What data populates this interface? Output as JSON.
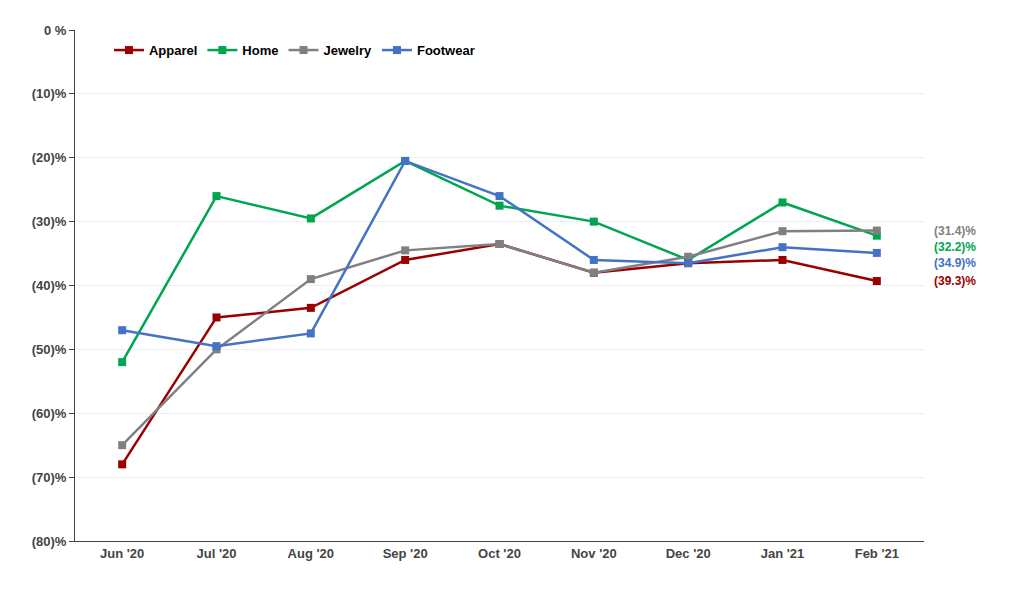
{
  "chart_data": {
    "type": "line",
    "categories": [
      "Jun '20",
      "Jul '20",
      "Aug '20",
      "Sep '20",
      "Oct '20",
      "Nov '20",
      "Dec '20",
      "Jan '21",
      "Feb '21"
    ],
    "series": [
      {
        "name": "Apparel",
        "color": "#9B0000",
        "marker": "square",
        "values": [
          -68.0,
          -45.0,
          -43.5,
          -36.0,
          -33.5,
          -38.0,
          -36.5,
          -36.0,
          -39.3
        ]
      },
      {
        "name": "Home",
        "color": "#00A550",
        "marker": "square",
        "values": [
          -52.0,
          -26.0,
          -29.5,
          -20.5,
          -27.5,
          -30.0,
          -36.0,
          -27.0,
          -32.2
        ]
      },
      {
        "name": "Jewelry",
        "color": "#808080",
        "marker": "square",
        "values": [
          -65.0,
          -50.0,
          -39.0,
          -34.5,
          -33.5,
          -38.0,
          -35.5,
          -31.5,
          -31.4
        ]
      },
      {
        "name": "Footwear",
        "color": "#4472C4",
        "marker": "square",
        "values": [
          -47.0,
          -49.5,
          -47.5,
          -20.5,
          -26.0,
          -36.0,
          -36.5,
          -34.0,
          -34.9
        ]
      }
    ],
    "ylim": [
      -80,
      0
    ],
    "yticks": [
      {
        "value": 0,
        "label": "0 %"
      },
      {
        "value": -10,
        "label": "(10)%"
      },
      {
        "value": -20,
        "label": "(20)%"
      },
      {
        "value": -30,
        "label": "(30)%"
      },
      {
        "value": -40,
        "label": "(40)%"
      },
      {
        "value": -50,
        "label": "(50)%"
      },
      {
        "value": -60,
        "label": "(60)%"
      },
      {
        "value": -70,
        "label": "(70)%"
      },
      {
        "value": -80,
        "label": "(80)%"
      }
    ],
    "grid": true,
    "legend": "upper left",
    "annotations": [
      {
        "text": "(31.4)%",
        "color": "#808080",
        "y": -31.4
      },
      {
        "text": "(32.2)%",
        "color": "#00A550",
        "y": -32.2
      },
      {
        "text": "(34.9)%",
        "color": "#4472C4",
        "y": -34.9
      },
      {
        "text": "(39.3)%",
        "color": "#9B0000",
        "y": -39.3
      }
    ]
  }
}
